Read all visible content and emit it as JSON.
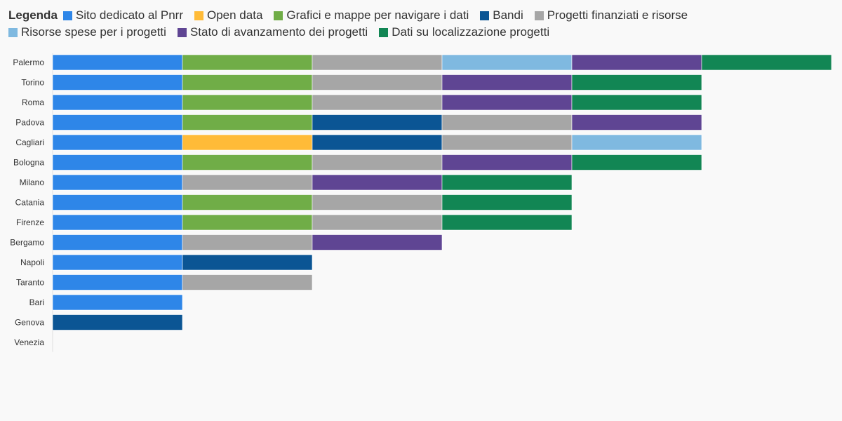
{
  "chart_data": {
    "type": "bar",
    "orientation": "horizontal",
    "stacked": true,
    "legend_title": "Legenda",
    "legend_position": "top",
    "grid": false,
    "xlim": [
      0,
      6
    ],
    "series": [
      {
        "name": "Sito dedicato al Pnrr",
        "color": "#2e86e8"
      },
      {
        "name": "Open data",
        "color": "#ffbb38"
      },
      {
        "name": "Grafici e mappe per navigare i dati",
        "color": "#70ad47"
      },
      {
        "name": "Bandi",
        "color": "#0b5594"
      },
      {
        "name": "Progetti finanziati e risorse",
        "color": "#a6a6a6"
      },
      {
        "name": "Risorse spese per i progetti",
        "color": "#7fb9e0"
      },
      {
        "name": "Stato di avanzamento dei progetti",
        "color": "#5f4593"
      },
      {
        "name": "Dati su localizzazione progetti",
        "color": "#128654"
      }
    ],
    "categories": [
      {
        "label": "Palermo",
        "segments": [
          "Sito dedicato al Pnrr",
          "Grafici e mappe per navigare i dati",
          "Progetti finanziati e risorse",
          "Risorse spese per i progetti",
          "Stato di avanzamento dei progetti",
          "Dati su localizzazione progetti"
        ]
      },
      {
        "label": "Torino",
        "segments": [
          "Sito dedicato al Pnrr",
          "Grafici e mappe per navigare i dati",
          "Progetti finanziati e risorse",
          "Stato di avanzamento dei progetti",
          "Dati su localizzazione progetti"
        ]
      },
      {
        "label": "Roma",
        "segments": [
          "Sito dedicato al Pnrr",
          "Grafici e mappe per navigare i dati",
          "Progetti finanziati e risorse",
          "Stato di avanzamento dei progetti",
          "Dati su localizzazione progetti"
        ]
      },
      {
        "label": "Padova",
        "segments": [
          "Sito dedicato al Pnrr",
          "Grafici e mappe per navigare i dati",
          "Bandi",
          "Progetti finanziati e risorse",
          "Stato di avanzamento dei progetti"
        ]
      },
      {
        "label": "Cagliari",
        "segments": [
          "Sito dedicato al Pnrr",
          "Open data",
          "Bandi",
          "Progetti finanziati e risorse",
          "Risorse spese per i progetti"
        ]
      },
      {
        "label": "Bologna",
        "segments": [
          "Sito dedicato al Pnrr",
          "Grafici e mappe per navigare i dati",
          "Progetti finanziati e risorse",
          "Stato di avanzamento dei progetti",
          "Dati su localizzazione progetti"
        ]
      },
      {
        "label": "Milano",
        "segments": [
          "Sito dedicato al Pnrr",
          "Progetti finanziati e risorse",
          "Stato di avanzamento dei progetti",
          "Dati su localizzazione progetti"
        ]
      },
      {
        "label": "Catania",
        "segments": [
          "Sito dedicato al Pnrr",
          "Grafici e mappe per navigare i dati",
          "Progetti finanziati e risorse",
          "Dati su localizzazione progetti"
        ]
      },
      {
        "label": "Firenze",
        "segments": [
          "Sito dedicato al Pnrr",
          "Grafici e mappe per navigare i dati",
          "Progetti finanziati e risorse",
          "Dati su localizzazione progetti"
        ]
      },
      {
        "label": "Bergamo",
        "segments": [
          "Sito dedicato al Pnrr",
          "Progetti finanziati e risorse",
          "Stato di avanzamento dei progetti"
        ]
      },
      {
        "label": "Napoli",
        "segments": [
          "Sito dedicato al Pnrr",
          "Bandi"
        ]
      },
      {
        "label": "Taranto",
        "segments": [
          "Sito dedicato al Pnrr",
          "Progetti finanziati e risorse"
        ]
      },
      {
        "label": "Bari",
        "segments": [
          "Sito dedicato al Pnrr"
        ]
      },
      {
        "label": "Genova",
        "segments": [
          "Bandi"
        ]
      },
      {
        "label": "Venezia",
        "segments": []
      }
    ]
  }
}
